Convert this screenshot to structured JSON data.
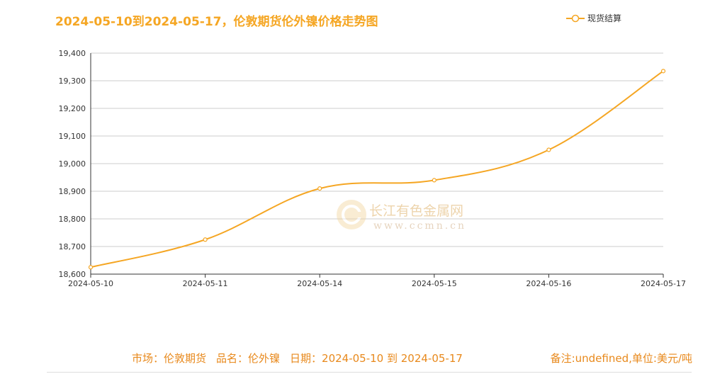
{
  "title": "2024-05-10到2024-05-17，伦敦期货伦外镍价格走势图",
  "legend": {
    "label": "现货结算"
  },
  "watermark": {
    "name": "长江有色金属网",
    "url": "www.ccmn.cn"
  },
  "footer": {
    "market": "市场：伦敦期货",
    "product": "品名：伦外镍",
    "date": "日期：2024-05-10 到 2024-05-17",
    "note": "备注:undefined,单位:美元/吨"
  },
  "colors": {
    "line": "#f5a623",
    "accent": "#e8891c",
    "grid": "#cccccc"
  },
  "chart_data": {
    "type": "line",
    "title": "2024-05-10到2024-05-17，伦敦期货伦外镍价格走势图",
    "categories": [
      "2024-05-10",
      "2024-05-11",
      "2024-05-14",
      "2024-05-15",
      "2024-05-16",
      "2024-05-17"
    ],
    "series": [
      {
        "name": "现货结算",
        "values": [
          18625,
          18725,
          18910,
          18940,
          19050,
          19335
        ]
      }
    ],
    "ylim": [
      18600,
      19400
    ],
    "yticks": [
      18600,
      18700,
      18800,
      18900,
      19000,
      19100,
      19200,
      19300,
      19400
    ],
    "ytick_labels": [
      "18,600",
      "18,700",
      "18,800",
      "18,900",
      "19,000",
      "19,100",
      "19,200",
      "19,300",
      "19,400"
    ],
    "grid": true,
    "legend_position": "top-right",
    "xlabel": "",
    "ylabel": ""
  }
}
